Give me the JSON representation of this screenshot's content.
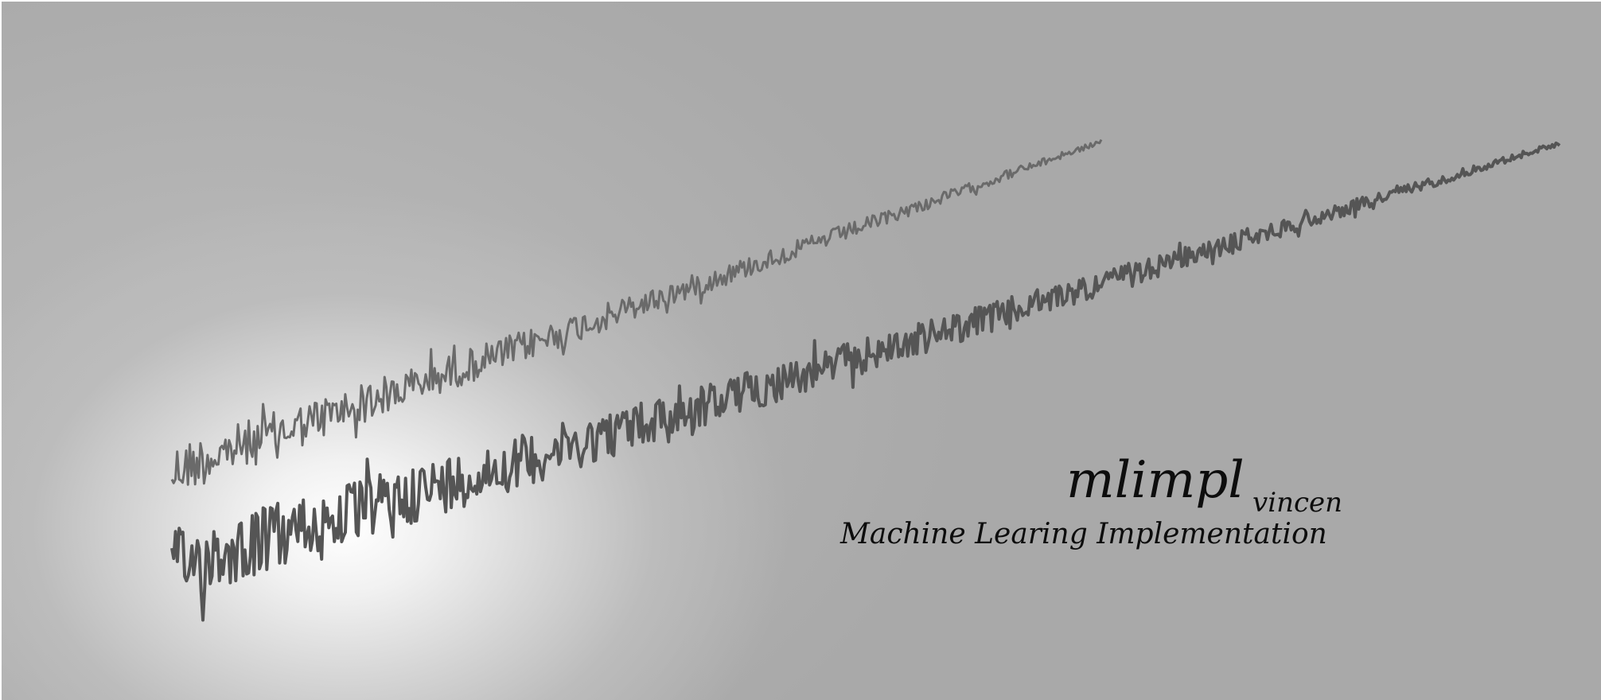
{
  "banner": {
    "title": "mlimpl",
    "author": "vincen",
    "subtitle": "Machine Learing Implementation",
    "colors": {
      "background": "#a9a9a9",
      "glow": "#ffffff",
      "wave_front": "#555555",
      "wave_back": "#6a6a6a",
      "text": "#0d0d0d"
    }
  }
}
